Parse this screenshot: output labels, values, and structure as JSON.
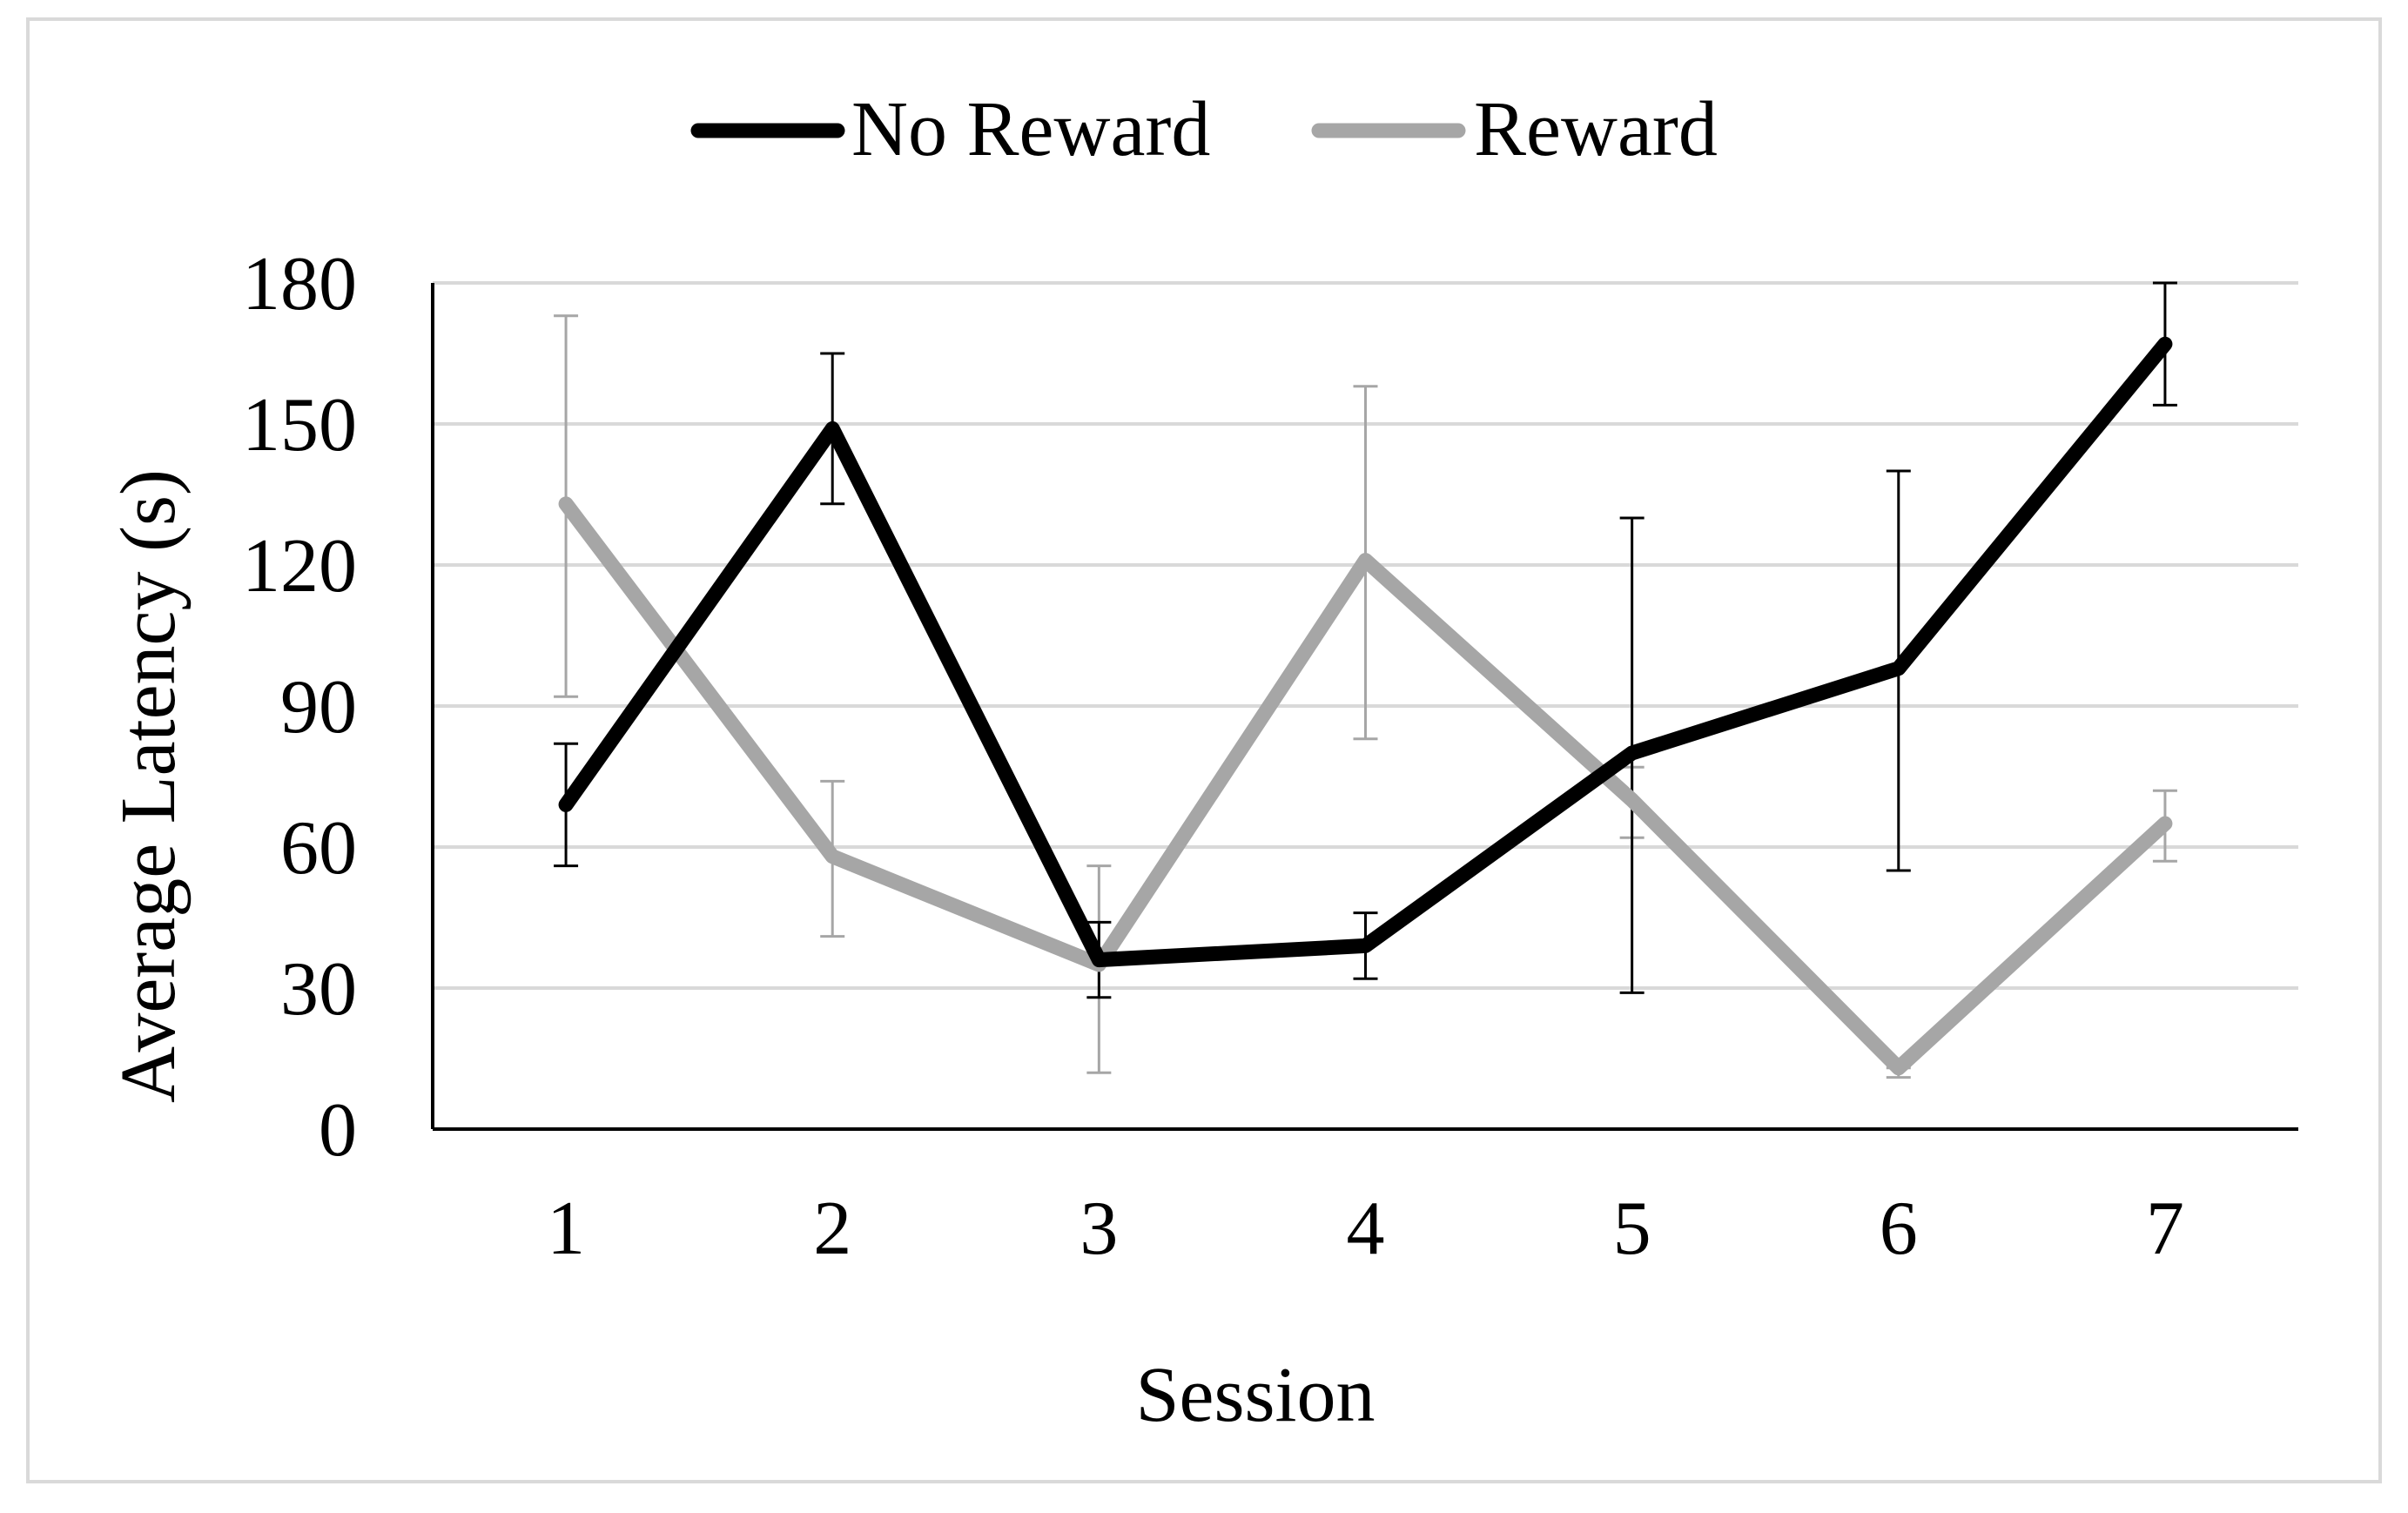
{
  "chart_data": {
    "type": "line",
    "xlabel": "Session",
    "ylabel": "Average Latency (s)",
    "categories": [
      "1",
      "2",
      "3",
      "4",
      "5",
      "6",
      "7"
    ],
    "yticks": [
      "0",
      "30",
      "60",
      "90",
      "120",
      "150",
      "180"
    ],
    "ylim": [
      0,
      180
    ],
    "grid": true,
    "legend_position": "top-center",
    "series": [
      {
        "name": "No Reward",
        "color": "#000000",
        "values": [
          69,
          149,
          36,
          39,
          80,
          98,
          167
        ],
        "error_low": [
          56,
          133,
          28,
          32,
          29,
          55,
          154
        ],
        "error_high": [
          82,
          165,
          44,
          46,
          130,
          140,
          180
        ]
      },
      {
        "name": "Reward",
        "color": "#A6A6A6",
        "values": [
          133,
          58,
          35,
          121,
          70,
          13,
          65
        ],
        "error_low": [
          92,
          41,
          12,
          83,
          62,
          11,
          57
        ],
        "error_high": [
          173,
          74,
          56,
          158,
          77,
          13,
          72
        ]
      }
    ]
  }
}
